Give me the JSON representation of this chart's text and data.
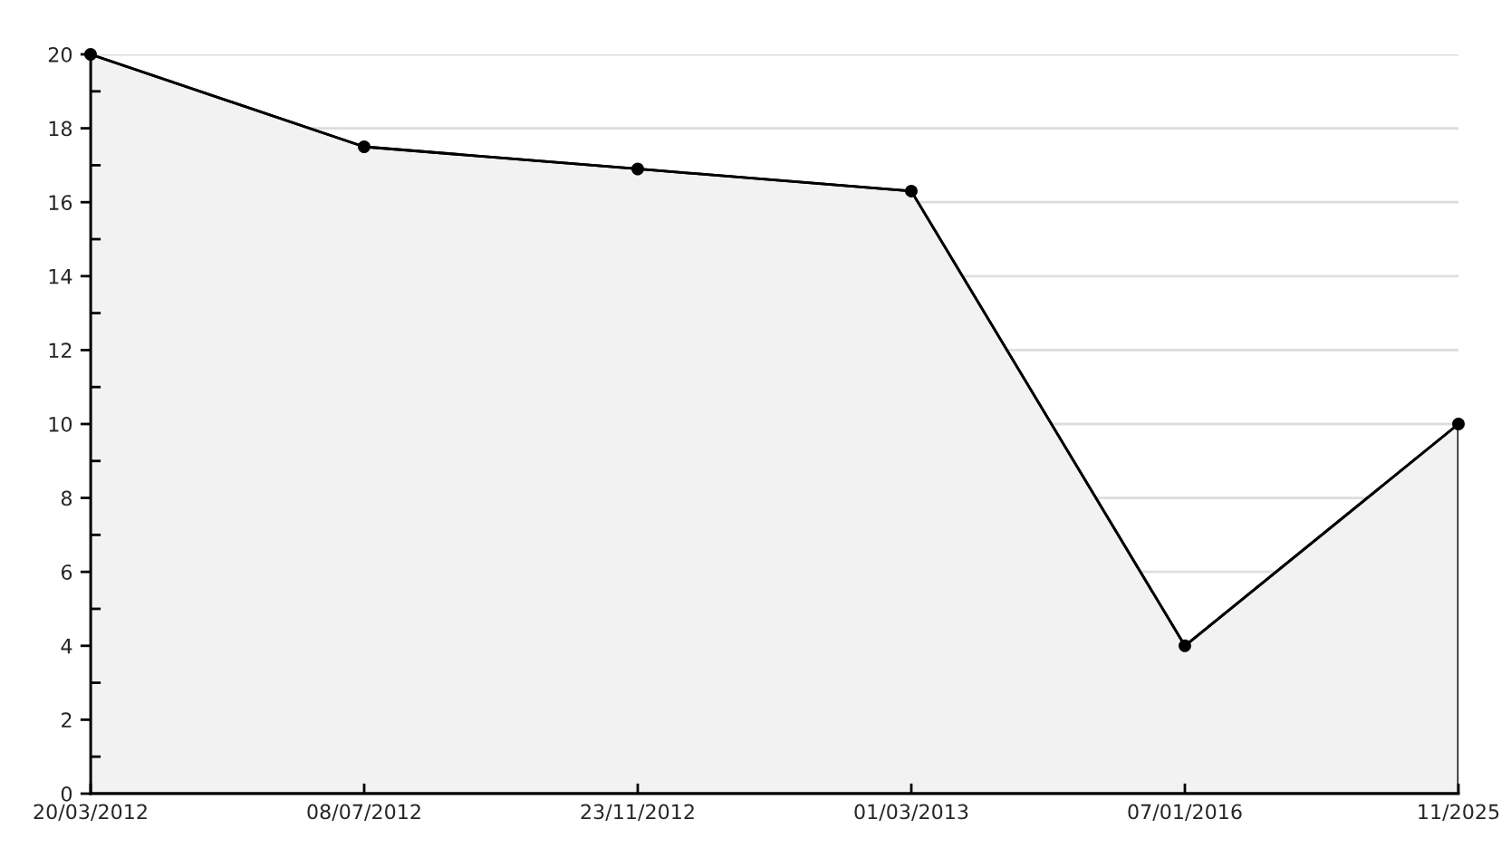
{
  "chart_data": {
    "type": "area",
    "categories": [
      "20/03/2012",
      "08/07/2012",
      "23/11/2012",
      "01/03/2013",
      "07/01/2016",
      "11/2025"
    ],
    "series": [
      {
        "color": "#f2f2f2",
        "values": [
          20,
          17.5,
          16.9,
          16.3,
          4,
          10
        ]
      }
    ],
    "ylim": [
      0,
      20
    ],
    "yticks": [
      0,
      {
        "value": 1,
        "label": null
      },
      2,
      {
        "value": 3,
        "label": null
      },
      4,
      {
        "value": 5,
        "label": null
      },
      6,
      {
        "value": 7,
        "label": null
      },
      8,
      {
        "value": 9,
        "label": null
      },
      10,
      {
        "value": 11,
        "label": null
      },
      12,
      {
        "value": 13,
        "label": null
      },
      14,
      {
        "value": 15,
        "label": null
      },
      16,
      {
        "value": 17,
        "label": null
      },
      18,
      {
        "value": 19,
        "label": null
      },
      20
    ],
    "grid": "y",
    "marker": "circle",
    "line_style": "solid",
    "legend": false
  }
}
